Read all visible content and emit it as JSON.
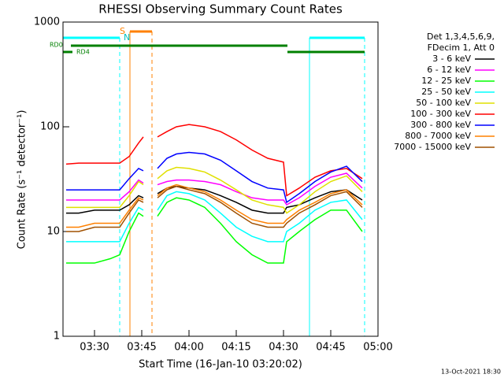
{
  "chart_data": {
    "type": "line",
    "title": "RHESSI Observing Summary Count Rates",
    "xlabel": "Start Time (16-Jan-10 03:20:02)",
    "ylabel": "Count Rate (s⁻¹ detector⁻¹)",
    "legend_title": [
      "Det 1,3,4,5,6,9,",
      "FDecim 1, Att 0"
    ],
    "annotations": [
      "S",
      "N",
      "RD0",
      "RD4"
    ],
    "timestamp": "13-Oct-2021 18:30",
    "log_y": true,
    "xlim": [
      200,
      300
    ],
    "xticks": [
      {
        "value": 210,
        "label": "03:30"
      },
      {
        "value": 225,
        "label": "03:45"
      },
      {
        "value": 240,
        "label": "04:00"
      },
      {
        "value": 255,
        "label": "04:15"
      },
      {
        "value": 270,
        "label": "04:30"
      },
      {
        "value": 285,
        "label": "04:45"
      },
      {
        "value": 300,
        "label": "05:00"
      }
    ],
    "ylim": [
      1,
      1000
    ],
    "yticks": [
      1,
      10,
      100,
      1000
    ],
    "x": [
      201,
      205,
      210,
      215,
      218,
      221,
      224,
      225.5,
      228,
      230,
      233,
      236,
      240,
      245,
      250,
      255,
      260,
      265,
      270,
      271,
      275,
      280,
      285,
      290,
      295
    ],
    "series": [
      {
        "name": "3 - 6 keV",
        "color": "#000000",
        "values": [
          15,
          15,
          16,
          16,
          16,
          18,
          22,
          21,
          null,
          23,
          26,
          27,
          26,
          25,
          22,
          19,
          16,
          15,
          15,
          17,
          18,
          21,
          24,
          25,
          20
        ]
      },
      {
        "name": "6 - 12 keV",
        "color": "#ff00ff",
        "values": [
          20,
          20,
          20,
          20,
          20,
          24,
          31,
          29,
          null,
          28,
          30,
          31,
          31,
          30,
          28,
          24,
          21,
          20,
          20,
          18,
          21,
          27,
          33,
          36,
          26
        ]
      },
      {
        "name": "12 - 25 keV",
        "color": "#00ff00",
        "values": [
          5,
          5,
          5,
          5.5,
          6,
          10,
          15,
          14,
          null,
          14,
          19,
          21,
          20,
          17,
          12,
          8,
          6,
          5,
          5,
          8,
          10,
          13,
          16,
          16,
          10
        ]
      },
      {
        "name": "25 - 50 keV",
        "color": "#00ffff",
        "values": [
          8,
          8,
          8,
          8,
          8,
          12,
          17,
          16,
          null,
          16,
          22,
          24,
          23,
          20,
          15,
          11,
          9,
          8,
          8,
          10,
          12,
          16,
          19,
          20,
          13
        ]
      },
      {
        "name": "50 - 100 keV",
        "color": "#e0e000",
        "values": [
          17,
          17,
          17,
          17,
          17,
          22,
          30,
          28,
          null,
          32,
          38,
          41,
          40,
          37,
          31,
          25,
          20,
          18,
          17,
          15,
          18,
          24,
          30,
          34,
          24
        ]
      },
      {
        "name": "100 - 300 keV",
        "color": "#ff0000",
        "values": [
          44,
          45,
          45,
          45,
          45,
          52,
          70,
          80,
          null,
          80,
          90,
          100,
          105,
          100,
          90,
          75,
          60,
          50,
          46,
          22,
          26,
          33,
          38,
          40,
          32
        ]
      },
      {
        "name": "300 - 800 keV",
        "color": "#0000ff",
        "values": [
          25,
          25,
          25,
          25,
          25,
          32,
          40,
          38,
          null,
          40,
          50,
          55,
          57,
          55,
          48,
          38,
          30,
          26,
          25,
          19,
          23,
          30,
          37,
          42,
          30
        ]
      },
      {
        "name": "800 - 7000 keV",
        "color": "#ff8000",
        "values": [
          11,
          11,
          12,
          12,
          12,
          16,
          21,
          20,
          null,
          22,
          26,
          28,
          26,
          24,
          20,
          16,
          13,
          12,
          12,
          13,
          16,
          19,
          23,
          25,
          18
        ]
      },
      {
        "name": "7000 - 15000 keV",
        "color": "#a05000",
        "values": [
          10,
          10,
          11,
          11,
          11,
          15,
          20,
          19,
          null,
          21,
          25,
          27,
          25,
          23,
          19,
          15,
          12,
          11,
          11,
          12,
          15,
          18,
          22,
          24,
          17
        ]
      }
    ]
  }
}
